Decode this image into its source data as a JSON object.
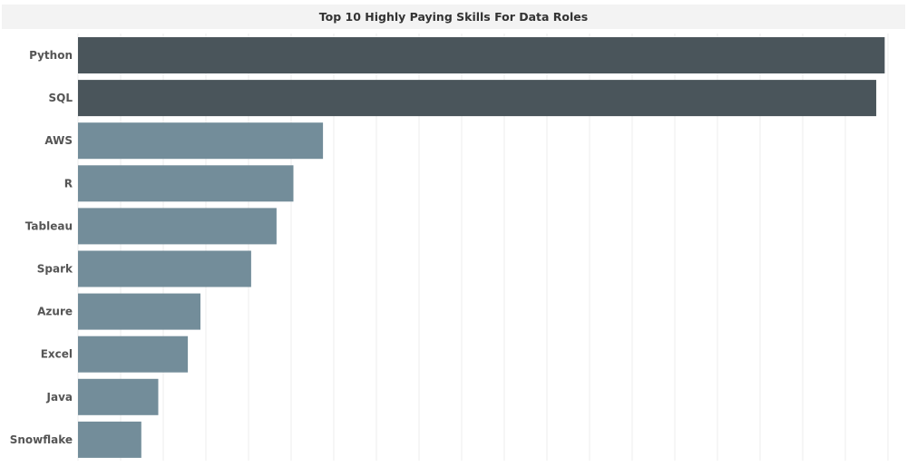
{
  "chart_data": {
    "type": "bar",
    "orientation": "horizontal",
    "title": "Top 10 Highly Paying Skills For Data Roles",
    "xlabel": "",
    "ylabel": "",
    "categories": [
      "Python",
      "SQL",
      "AWS",
      "R",
      "Tableau",
      "Spark",
      "Azure",
      "Excel",
      "Java",
      "Snowflake"
    ],
    "values": [
      191,
      189,
      58,
      51,
      47,
      41,
      29,
      26,
      19,
      15
    ],
    "xlim": [
      0,
      195
    ],
    "grid": true,
    "legend": "none",
    "colors": {
      "highlight": "#4a555b",
      "default": "#738d9a",
      "grid": "#ececec",
      "title_bg": "#f3f3f3",
      "label": "#555555"
    },
    "highlighted": [
      "Python",
      "SQL"
    ]
  }
}
